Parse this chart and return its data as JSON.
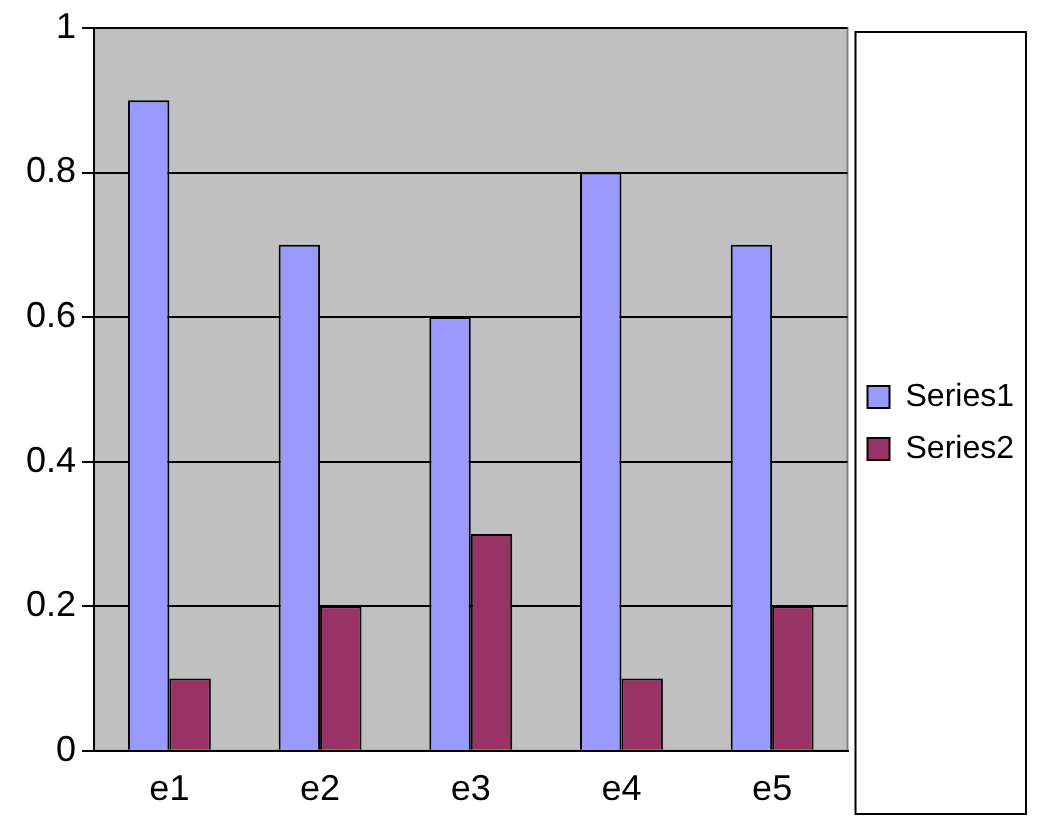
{
  "chart_data": {
    "type": "bar",
    "categories": [
      "e1",
      "e2",
      "e3",
      "e4",
      "e5"
    ],
    "series": [
      {
        "name": "Series1",
        "color": "#9999ff",
        "values": [
          0.9,
          0.7,
          0.6,
          0.8,
          0.7
        ]
      },
      {
        "name": "Series2",
        "color": "#993366",
        "values": [
          0.1,
          0.2,
          0.3,
          0.1,
          0.2
        ]
      }
    ],
    "ylim": [
      0,
      1
    ],
    "yticks": [
      0,
      0.2,
      0.4,
      0.6,
      0.8,
      1
    ],
    "grid": "y",
    "legend": "right"
  }
}
